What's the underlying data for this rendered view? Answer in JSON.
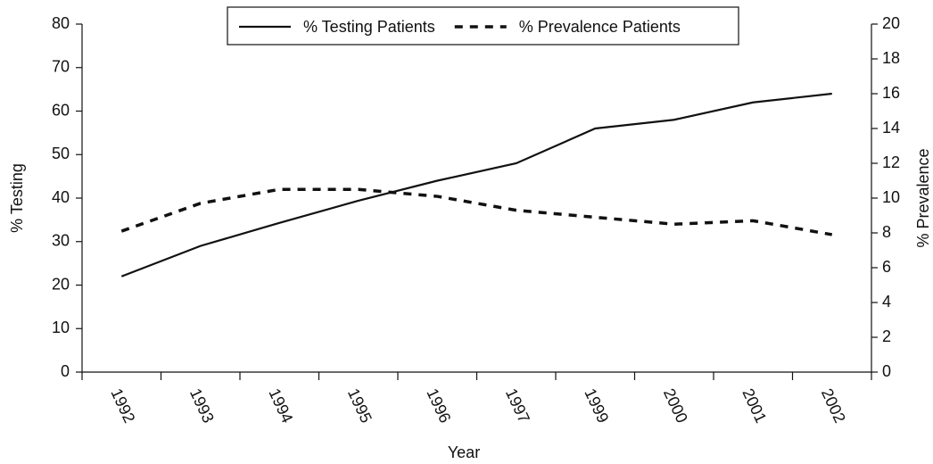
{
  "chart_data": {
    "type": "line",
    "xlabel": "Year",
    "ylabel": "% Testing",
    "y2label": "% Prevalence",
    "categories": [
      "1992",
      "1993",
      "1994",
      "1995",
      "1996",
      "1997",
      "1999",
      "2000",
      "2001",
      "2002"
    ],
    "series": [
      {
        "name": "% Testing Patients",
        "color": "#111111",
        "style": "solid",
        "values": [
          22,
          29,
          34.3,
          39.4,
          44,
          48,
          56,
          58,
          62,
          64
        ]
      },
      {
        "name": "% Prevalence Patients",
        "color": "#111111",
        "style": "dashed",
        "axis": "y2",
        "values": [
          8.1,
          9.7,
          10.5,
          10.5,
          10.1,
          9.3,
          8.9,
          8.5,
          8.7,
          7.9
        ]
      }
    ],
    "ylim": [
      0,
      80
    ],
    "yticks": [
      0,
      10,
      20,
      30,
      40,
      50,
      60,
      70,
      80
    ],
    "y2lim": [
      0,
      20
    ],
    "y2ticks": [
      0,
      2,
      4,
      6,
      8,
      10,
      12,
      14,
      16,
      18,
      20
    ],
    "legend": "top"
  }
}
